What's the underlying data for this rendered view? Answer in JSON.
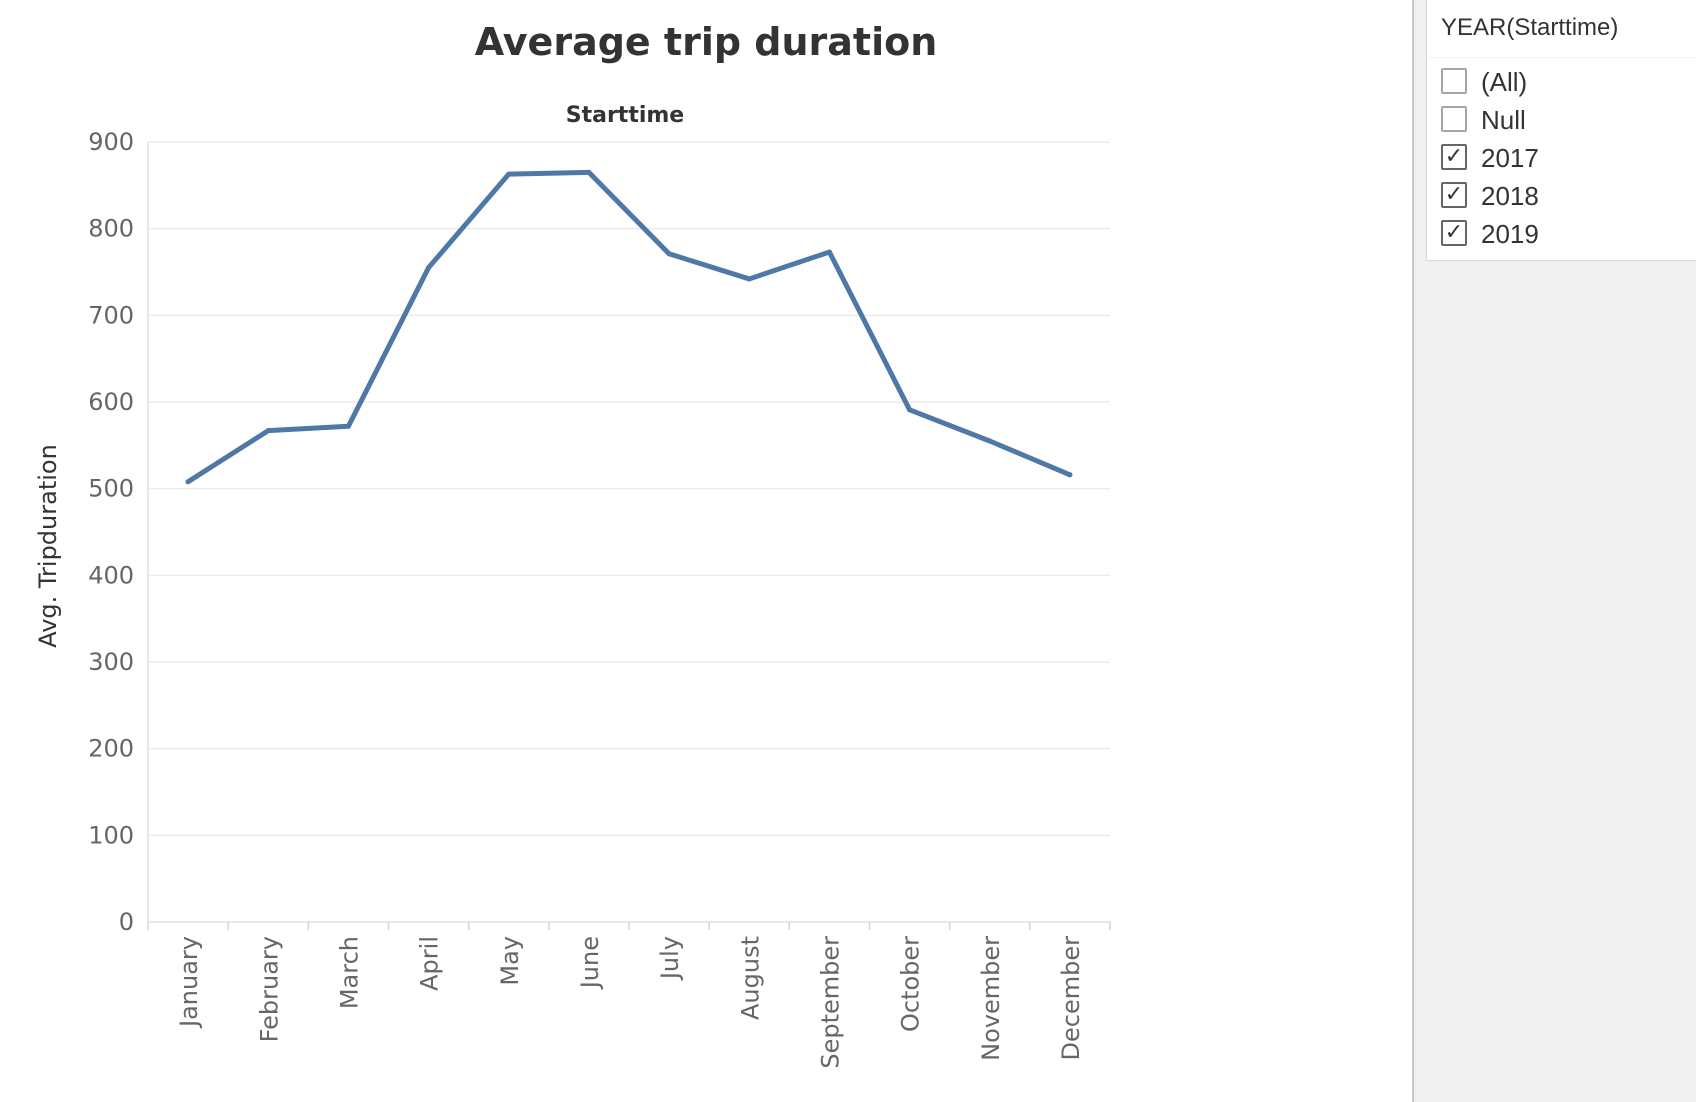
{
  "chart_data": {
    "type": "line",
    "title": "Average trip duration",
    "header": "Starttime",
    "xlabel": "",
    "ylabel": "Avg. Tripduration",
    "categories": [
      "January",
      "February",
      "March",
      "April",
      "May",
      "June",
      "July",
      "August",
      "September",
      "October",
      "November",
      "December"
    ],
    "series": [
      {
        "values": [
          508,
          567,
          572,
          755,
          863,
          865,
          771,
          742,
          773,
          591,
          555,
          516
        ]
      }
    ],
    "yticks": [
      "0",
      "100",
      "200",
      "300",
      "400",
      "500",
      "600",
      "700",
      "800",
      "900"
    ],
    "ylim": [
      0,
      900
    ],
    "grid": true,
    "line_color": "#4e79a7"
  },
  "filter": {
    "title": "YEAR(Starttime)",
    "options": [
      {
        "label": "(All)",
        "checked": false
      },
      {
        "label": "Null",
        "checked": false
      },
      {
        "label": "2017",
        "checked": true
      },
      {
        "label": "2018",
        "checked": true
      },
      {
        "label": "2019",
        "checked": true
      }
    ],
    "check_glyph": "✓"
  }
}
